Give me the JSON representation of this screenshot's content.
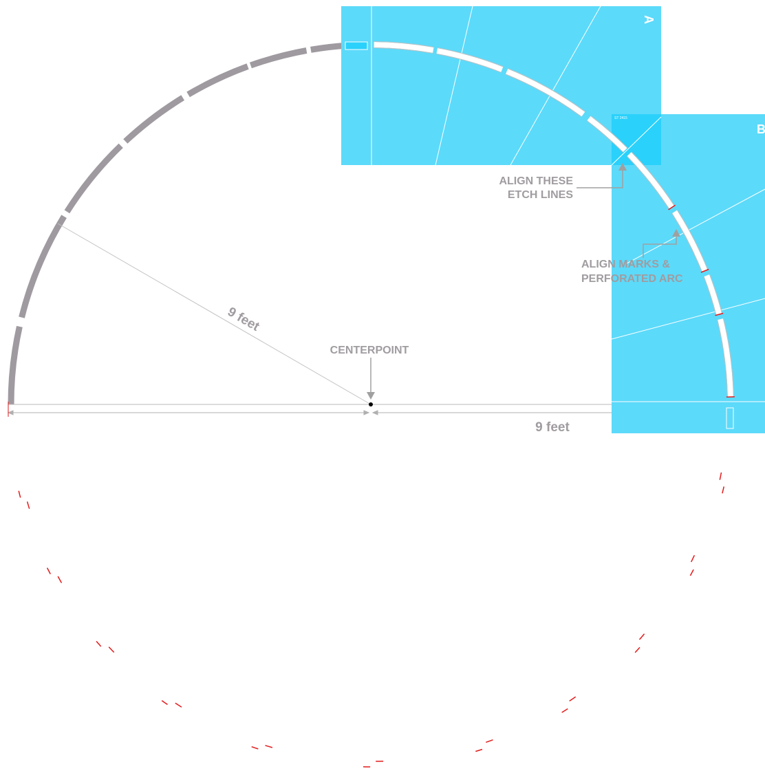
{
  "diagram": {
    "radius_label": "9 feet",
    "diameter_label": "9 feet",
    "centerpoint_label": "CENTERPOINT",
    "etch_label_line1": "ALIGN THESE",
    "etch_label_line2": "ETCH LINES",
    "marks_label_line1": "ALIGN MARKS &",
    "marks_label_line2": "PERFORATED ARC",
    "sheet_a_letter": "A",
    "sheet_b_letter": "B",
    "sheet_b_code": "ST 2415"
  },
  "colors": {
    "arc": "#9f9aa0",
    "sheet": "#5cdafa",
    "sheet_overlap": "#2ad1fb",
    "guide": "#a8a8a8",
    "red_mark": "#e21a1a",
    "label": "#a09ca0"
  }
}
